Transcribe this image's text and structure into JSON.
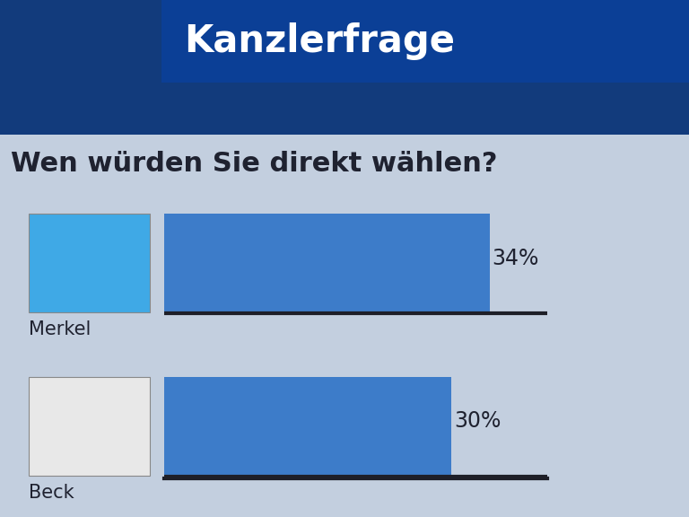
{
  "chart_data": {
    "type": "bar",
    "title": "Kanzlerfrage",
    "subtitle": "Wen würden Sie direkt wählen?",
    "categories": [
      "Merkel",
      "Beck"
    ],
    "values": [
      34,
      30
    ],
    "value_labels": [
      "34%",
      "30%"
    ],
    "color": "#3d7cc9",
    "xlim": [
      0,
      40
    ],
    "xticks": [],
    "orientation": "horizontal",
    "data_labels": true,
    "tick_labels": false
  }
}
